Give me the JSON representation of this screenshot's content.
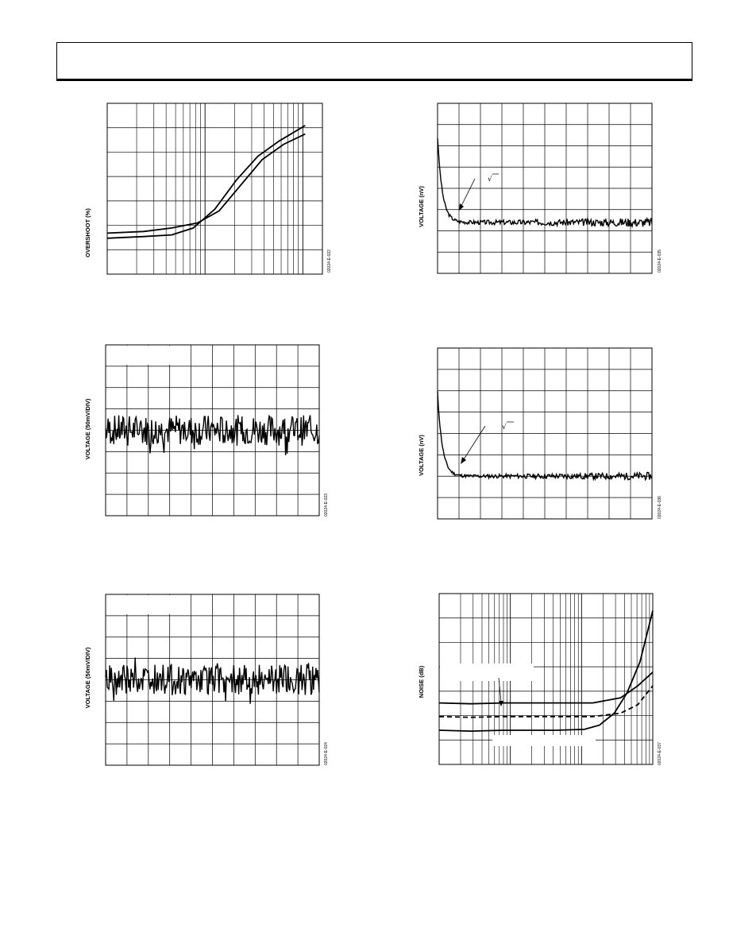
{
  "header": {},
  "chart_data": [
    {
      "type": "line",
      "ylabel": "OVERSHOOT (%)",
      "xscale": "log",
      "grid": true,
      "figure_code": "02024-E-022",
      "series": [
        {
          "points": [
            [
              0.0,
              0.24
            ],
            [
              0.17,
              0.25
            ],
            [
              0.3,
              0.27
            ],
            [
              0.42,
              0.3
            ],
            [
              0.52,
              0.37
            ],
            [
              0.62,
              0.52
            ],
            [
              0.72,
              0.67
            ],
            [
              0.82,
              0.76
            ],
            [
              0.92,
              0.82
            ]
          ]
        },
        {
          "points": [
            [
              0.0,
              0.21
            ],
            [
              0.17,
              0.22
            ],
            [
              0.3,
              0.23
            ],
            [
              0.4,
              0.27
            ],
            [
              0.5,
              0.38
            ],
            [
              0.6,
              0.55
            ],
            [
              0.7,
              0.69
            ],
            [
              0.8,
              0.78
            ],
            [
              0.92,
              0.87
            ]
          ]
        }
      ]
    },
    {
      "type": "line",
      "ylabel": "VOLTAGE (nV)",
      "grid": true,
      "figure_code": "02024-E-035",
      "annotation": "√",
      "series": [
        {
          "pattern": "decay-noise",
          "start": 0.8,
          "settle": 0.3,
          "amp": 0.018,
          "seed": 3
        }
      ]
    },
    {
      "type": "line",
      "ylabel": "VOLTAGE (50mV/DIV)",
      "grid": true,
      "figure_code": "02024-E-023",
      "series": [
        {
          "pattern": "noise",
          "center": 0.5,
          "amp": 0.09,
          "seed": 7
        }
      ]
    },
    {
      "type": "line",
      "ylabel": "VOLTAGE (nV)",
      "grid": true,
      "figure_code": "02024-E-036",
      "annotation": "√",
      "series": [
        {
          "pattern": "decay-noise",
          "start": 0.74,
          "settle": 0.25,
          "amp": 0.015,
          "seed": 11
        }
      ]
    },
    {
      "type": "line",
      "ylabel": "VOLTAGE (50mV/DIV)",
      "grid": true,
      "figure_code": "02024-E-024",
      "series": [
        {
          "pattern": "noise",
          "center": 0.5,
          "amp": 0.09,
          "seed": 19
        }
      ]
    },
    {
      "type": "line",
      "ylabel": "NOISE (dB)",
      "xscale": "log",
      "grid": true,
      "figure_code": "02024-E-037",
      "series": [
        {
          "style": "solid",
          "points": [
            [
              0.0,
              0.36
            ],
            [
              0.15,
              0.355
            ],
            [
              0.3,
              0.36
            ],
            [
              0.55,
              0.36
            ],
            [
              0.72,
              0.36
            ],
            [
              0.85,
              0.39
            ],
            [
              0.93,
              0.46
            ],
            [
              1.0,
              0.54
            ]
          ]
        },
        {
          "style": "dashed",
          "points": [
            [
              0.0,
              0.28
            ],
            [
              0.15,
              0.276
            ],
            [
              0.3,
              0.28
            ],
            [
              0.55,
              0.28
            ],
            [
              0.72,
              0.28
            ],
            [
              0.85,
              0.3
            ],
            [
              0.93,
              0.35
            ],
            [
              1.0,
              0.46
            ]
          ]
        },
        {
          "style": "solid",
          "points": [
            [
              0.0,
              0.2
            ],
            [
              0.15,
              0.195
            ],
            [
              0.3,
              0.2
            ],
            [
              0.55,
              0.2
            ],
            [
              0.68,
              0.205
            ],
            [
              0.75,
              0.23
            ],
            [
              0.82,
              0.3
            ],
            [
              0.88,
              0.42
            ],
            [
              0.94,
              0.6
            ],
            [
              1.0,
              0.9
            ]
          ]
        }
      ]
    }
  ]
}
